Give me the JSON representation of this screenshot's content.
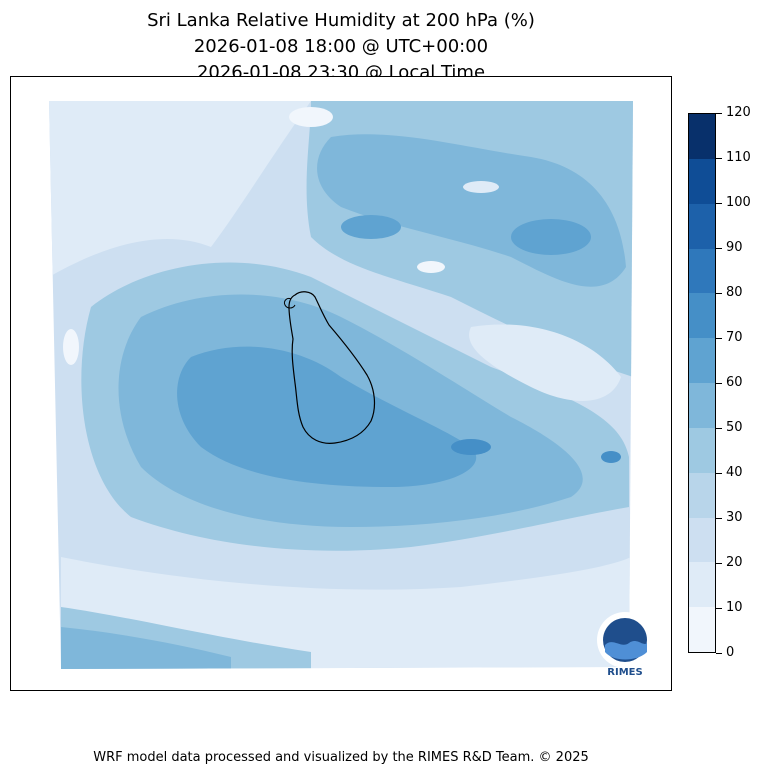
{
  "title": {
    "line1": "Sri Lanka Relative Humidity at 200 hPa (%)",
    "line2": "2026-01-08 18:00 @ UTC+00:00",
    "line3": "2026-01-08 23:30 @ Local Time"
  },
  "colorbar": {
    "ticks": [
      "0",
      "10",
      "20",
      "30",
      "40",
      "50",
      "60",
      "70",
      "80",
      "90",
      "100",
      "110",
      "120"
    ],
    "colors": [
      "#f1f6fc",
      "#dfebf7",
      "#cddff1",
      "#b8d5ea",
      "#9ec9e2",
      "#7fb7da",
      "#5fa3d1",
      "#458fc7",
      "#2f78bb",
      "#1d61aa",
      "#0f4d96",
      "#08306b"
    ]
  },
  "logo": {
    "name": "RIMES"
  },
  "footer": {
    "credit": "WRF model data processed and visualized by the RIMES R&D Team. © 2025"
  },
  "colors": {
    "land_outline": "#000000",
    "field_low": "#dfebf7",
    "field_mid": "#9ec9e2",
    "field_high": "#5fa3d1"
  }
}
